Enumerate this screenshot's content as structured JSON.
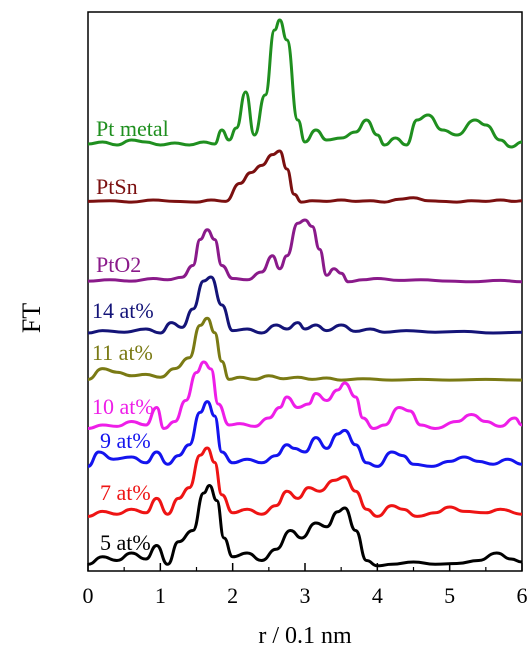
{
  "chart_data": {
    "type": "line",
    "title": "",
    "xlabel": "r / 0.1 nm",
    "ylabel": "FT",
    "xlim": [
      0,
      6
    ],
    "xticks": [
      "0",
      "1",
      "2",
      "3",
      "4",
      "5",
      "6"
    ],
    "grid": false,
    "legend": "labels placed next to each curve",
    "offset_spectra": true,
    "series": [
      {
        "name": "Pt metal",
        "color": "#1f8f1f",
        "points": [
          [
            0,
            0.06
          ],
          [
            0.2,
            0.08
          ],
          [
            0.4,
            0.05
          ],
          [
            0.6,
            0.1
          ],
          [
            0.8,
            0.08
          ],
          [
            1.0,
            0.05
          ],
          [
            1.2,
            0.07
          ],
          [
            1.4,
            0.05
          ],
          [
            1.6,
            0.08
          ],
          [
            1.75,
            0.06
          ],
          [
            1.85,
            0.2
          ],
          [
            1.95,
            0.1
          ],
          [
            2.05,
            0.22
          ],
          [
            2.18,
            0.58
          ],
          [
            2.3,
            0.15
          ],
          [
            2.45,
            0.55
          ],
          [
            2.58,
            1.2
          ],
          [
            2.65,
            1.3
          ],
          [
            2.75,
            1.1
          ],
          [
            2.9,
            0.3
          ],
          [
            3.0,
            0.08
          ],
          [
            3.15,
            0.2
          ],
          [
            3.3,
            0.1
          ],
          [
            3.5,
            0.12
          ],
          [
            3.7,
            0.18
          ],
          [
            3.85,
            0.3
          ],
          [
            4.0,
            0.15
          ],
          [
            4.1,
            0.05
          ],
          [
            4.25,
            0.12
          ],
          [
            4.4,
            0.05
          ],
          [
            4.55,
            0.3
          ],
          [
            4.7,
            0.35
          ],
          [
            4.9,
            0.2
          ],
          [
            5.1,
            0.15
          ],
          [
            5.35,
            0.3
          ],
          [
            5.5,
            0.25
          ],
          [
            5.7,
            0.1
          ],
          [
            5.85,
            0.03
          ],
          [
            6.0,
            0.08
          ]
        ]
      },
      {
        "name": "PtSn",
        "color": "#7b1010",
        "points": [
          [
            0,
            0.05
          ],
          [
            0.3,
            0.06
          ],
          [
            0.6,
            0.04
          ],
          [
            0.9,
            0.07
          ],
          [
            1.2,
            0.05
          ],
          [
            1.5,
            0.04
          ],
          [
            1.7,
            0.07
          ],
          [
            1.9,
            0.05
          ],
          [
            2.1,
            0.3
          ],
          [
            2.25,
            0.45
          ],
          [
            2.4,
            0.55
          ],
          [
            2.55,
            0.7
          ],
          [
            2.65,
            0.75
          ],
          [
            2.75,
            0.5
          ],
          [
            2.85,
            0.15
          ],
          [
            2.95,
            0.04
          ],
          [
            3.1,
            0.06
          ],
          [
            3.3,
            0.05
          ],
          [
            3.5,
            0.07
          ],
          [
            3.7,
            0.05
          ],
          [
            3.9,
            0.06
          ],
          [
            4.1,
            0.04
          ],
          [
            4.3,
            0.08
          ],
          [
            4.5,
            0.1
          ],
          [
            4.7,
            0.06
          ],
          [
            4.9,
            0.05
          ],
          [
            5.1,
            0.04
          ],
          [
            5.3,
            0.06
          ],
          [
            5.5,
            0.05
          ],
          [
            5.7,
            0.07
          ],
          [
            5.9,
            0.05
          ],
          [
            6.0,
            0.06
          ]
        ]
      },
      {
        "name": "PtO2",
        "color": "#8a1a8a",
        "points": [
          [
            0,
            0.06
          ],
          [
            0.3,
            0.08
          ],
          [
            0.6,
            0.06
          ],
          [
            0.9,
            0.1
          ],
          [
            1.1,
            0.08
          ],
          [
            1.3,
            0.12
          ],
          [
            1.45,
            0.3
          ],
          [
            1.55,
            0.7
          ],
          [
            1.65,
            0.85
          ],
          [
            1.75,
            0.7
          ],
          [
            1.85,
            0.3
          ],
          [
            2.0,
            0.1
          ],
          [
            2.2,
            0.08
          ],
          [
            2.4,
            0.2
          ],
          [
            2.55,
            0.45
          ],
          [
            2.65,
            0.25
          ],
          [
            2.75,
            0.45
          ],
          [
            2.9,
            0.95
          ],
          [
            3.0,
            1.0
          ],
          [
            3.1,
            0.9
          ],
          [
            3.2,
            0.55
          ],
          [
            3.3,
            0.15
          ],
          [
            3.4,
            0.25
          ],
          [
            3.5,
            0.18
          ],
          [
            3.6,
            0.05
          ],
          [
            3.8,
            0.08
          ],
          [
            4.0,
            0.1
          ],
          [
            4.3,
            0.07
          ],
          [
            4.6,
            0.08
          ],
          [
            5.0,
            0.06
          ],
          [
            5.3,
            0.05
          ],
          [
            5.7,
            0.07
          ],
          [
            6.0,
            0.05
          ]
        ]
      },
      {
        "name": "14 at%",
        "color": "#141478",
        "points": [
          [
            0,
            0.05
          ],
          [
            0.2,
            0.08
          ],
          [
            0.5,
            0.06
          ],
          [
            0.8,
            0.1
          ],
          [
            1.0,
            0.05
          ],
          [
            1.15,
            0.18
          ],
          [
            1.3,
            0.12
          ],
          [
            1.45,
            0.35
          ],
          [
            1.6,
            0.7
          ],
          [
            1.7,
            0.75
          ],
          [
            1.85,
            0.4
          ],
          [
            2.0,
            0.08
          ],
          [
            2.2,
            0.1
          ],
          [
            2.4,
            0.05
          ],
          [
            2.6,
            0.15
          ],
          [
            2.75,
            0.1
          ],
          [
            2.9,
            0.18
          ],
          [
            3.0,
            0.1
          ],
          [
            3.15,
            0.15
          ],
          [
            3.3,
            0.08
          ],
          [
            3.5,
            0.15
          ],
          [
            3.7,
            0.07
          ],
          [
            3.9,
            0.1
          ],
          [
            4.1,
            0.06
          ],
          [
            4.4,
            0.08
          ],
          [
            4.8,
            0.06
          ],
          [
            5.2,
            0.07
          ],
          [
            5.6,
            0.05
          ],
          [
            6.0,
            0.06
          ]
        ]
      },
      {
        "name": "11 at%",
        "color": "#7a7a14",
        "points": [
          [
            0,
            0.05
          ],
          [
            0.2,
            0.2
          ],
          [
            0.4,
            0.15
          ],
          [
            0.6,
            0.1
          ],
          [
            0.8,
            0.12
          ],
          [
            1.0,
            0.08
          ],
          [
            1.2,
            0.2
          ],
          [
            1.4,
            0.35
          ],
          [
            1.55,
            0.8
          ],
          [
            1.65,
            0.9
          ],
          [
            1.75,
            0.7
          ],
          [
            1.85,
            0.3
          ],
          [
            1.95,
            0.05
          ],
          [
            2.1,
            0.08
          ],
          [
            2.3,
            0.05
          ],
          [
            2.5,
            0.1
          ],
          [
            2.7,
            0.06
          ],
          [
            2.9,
            0.08
          ],
          [
            3.1,
            0.05
          ],
          [
            3.3,
            0.07
          ],
          [
            3.5,
            0.04
          ],
          [
            3.8,
            0.06
          ],
          [
            4.2,
            0.04
          ],
          [
            4.6,
            0.05
          ],
          [
            5.0,
            0.04
          ],
          [
            5.5,
            0.05
          ],
          [
            6.0,
            0.04
          ]
        ]
      },
      {
        "name": "10 at%",
        "color": "#ee1ee8",
        "points": [
          [
            0,
            0.05
          ],
          [
            0.2,
            0.1
          ],
          [
            0.4,
            0.08
          ],
          [
            0.6,
            0.15
          ],
          [
            0.8,
            0.1
          ],
          [
            0.95,
            0.35
          ],
          [
            1.05,
            0.05
          ],
          [
            1.2,
            0.15
          ],
          [
            1.35,
            0.45
          ],
          [
            1.5,
            0.85
          ],
          [
            1.6,
            1.0
          ],
          [
            1.7,
            0.9
          ],
          [
            1.8,
            0.4
          ],
          [
            1.95,
            0.1
          ],
          [
            2.1,
            0.12
          ],
          [
            2.3,
            0.08
          ],
          [
            2.5,
            0.2
          ],
          [
            2.65,
            0.35
          ],
          [
            2.75,
            0.5
          ],
          [
            2.9,
            0.35
          ],
          [
            3.05,
            0.4
          ],
          [
            3.15,
            0.55
          ],
          [
            3.3,
            0.45
          ],
          [
            3.45,
            0.6
          ],
          [
            3.55,
            0.7
          ],
          [
            3.7,
            0.5
          ],
          [
            3.8,
            0.2
          ],
          [
            3.95,
            0.05
          ],
          [
            4.1,
            0.1
          ],
          [
            4.3,
            0.35
          ],
          [
            4.45,
            0.3
          ],
          [
            4.6,
            0.1
          ],
          [
            4.8,
            0.05
          ],
          [
            5.1,
            0.15
          ],
          [
            5.3,
            0.25
          ],
          [
            5.5,
            0.15
          ],
          [
            5.7,
            0.08
          ],
          [
            5.9,
            0.2
          ],
          [
            6.0,
            0.1
          ]
        ]
      },
      {
        "name": "9 at%",
        "color": "#1414ee",
        "points": [
          [
            0,
            0.05
          ],
          [
            0.15,
            0.25
          ],
          [
            0.35,
            0.15
          ],
          [
            0.6,
            0.18
          ],
          [
            0.8,
            0.1
          ],
          [
            0.95,
            0.25
          ],
          [
            1.1,
            0.08
          ],
          [
            1.25,
            0.2
          ],
          [
            1.4,
            0.35
          ],
          [
            1.55,
            0.8
          ],
          [
            1.65,
            0.95
          ],
          [
            1.75,
            0.75
          ],
          [
            1.85,
            0.25
          ],
          [
            2.0,
            0.1
          ],
          [
            2.2,
            0.15
          ],
          [
            2.4,
            0.1
          ],
          [
            2.6,
            0.2
          ],
          [
            2.75,
            0.35
          ],
          [
            2.85,
            0.3
          ],
          [
            3.0,
            0.25
          ],
          [
            3.15,
            0.45
          ],
          [
            3.3,
            0.3
          ],
          [
            3.45,
            0.5
          ],
          [
            3.55,
            0.55
          ],
          [
            3.7,
            0.35
          ],
          [
            3.85,
            0.1
          ],
          [
            4.0,
            0.05
          ],
          [
            4.2,
            0.25
          ],
          [
            4.35,
            0.2
          ],
          [
            4.5,
            0.08
          ],
          [
            4.75,
            0.05
          ],
          [
            5.0,
            0.12
          ],
          [
            5.2,
            0.18
          ],
          [
            5.4,
            0.12
          ],
          [
            5.6,
            0.08
          ],
          [
            5.8,
            0.15
          ],
          [
            6.0,
            0.08
          ]
        ]
      },
      {
        "name": "7 at%",
        "color": "#ee1414",
        "points": [
          [
            0,
            0.05
          ],
          [
            0.2,
            0.12
          ],
          [
            0.4,
            0.08
          ],
          [
            0.6,
            0.15
          ],
          [
            0.8,
            0.1
          ],
          [
            0.95,
            0.3
          ],
          [
            1.1,
            0.08
          ],
          [
            1.25,
            0.3
          ],
          [
            1.4,
            0.45
          ],
          [
            1.55,
            0.9
          ],
          [
            1.65,
            1.0
          ],
          [
            1.75,
            0.8
          ],
          [
            1.85,
            0.35
          ],
          [
            2.0,
            0.1
          ],
          [
            2.2,
            0.15
          ],
          [
            2.4,
            0.08
          ],
          [
            2.6,
            0.2
          ],
          [
            2.75,
            0.4
          ],
          [
            2.9,
            0.3
          ],
          [
            3.05,
            0.45
          ],
          [
            3.2,
            0.4
          ],
          [
            3.4,
            0.55
          ],
          [
            3.55,
            0.6
          ],
          [
            3.7,
            0.4
          ],
          [
            3.85,
            0.15
          ],
          [
            4.0,
            0.05
          ],
          [
            4.2,
            0.2
          ],
          [
            4.35,
            0.15
          ],
          [
            4.55,
            0.05
          ],
          [
            4.8,
            0.1
          ],
          [
            5.0,
            0.18
          ],
          [
            5.2,
            0.12
          ],
          [
            5.5,
            0.1
          ],
          [
            5.7,
            0.15
          ],
          [
            6.0,
            0.08
          ]
        ]
      },
      {
        "name": "5 at%",
        "color": "#000000",
        "points": [
          [
            0,
            0.05
          ],
          [
            0.2,
            0.15
          ],
          [
            0.4,
            0.1
          ],
          [
            0.6,
            0.2
          ],
          [
            0.8,
            0.12
          ],
          [
            0.95,
            0.3
          ],
          [
            1.1,
            0.05
          ],
          [
            1.25,
            0.35
          ],
          [
            1.45,
            0.5
          ],
          [
            1.6,
            1.0
          ],
          [
            1.68,
            1.1
          ],
          [
            1.78,
            0.9
          ],
          [
            1.88,
            0.4
          ],
          [
            2.0,
            0.15
          ],
          [
            2.2,
            0.2
          ],
          [
            2.4,
            0.1
          ],
          [
            2.6,
            0.25
          ],
          [
            2.8,
            0.5
          ],
          [
            2.95,
            0.4
          ],
          [
            3.15,
            0.6
          ],
          [
            3.3,
            0.55
          ],
          [
            3.45,
            0.75
          ],
          [
            3.55,
            0.8
          ],
          [
            3.7,
            0.5
          ],
          [
            3.85,
            0.1
          ],
          [
            4.0,
            0.03
          ],
          [
            4.2,
            0.05
          ],
          [
            4.5,
            0.08
          ],
          [
            4.8,
            0.05
          ],
          [
            5.1,
            0.06
          ],
          [
            5.4,
            0.1
          ],
          [
            5.65,
            0.2
          ],
          [
            5.85,
            0.12
          ],
          [
            6.0,
            0.08
          ]
        ]
      }
    ]
  }
}
